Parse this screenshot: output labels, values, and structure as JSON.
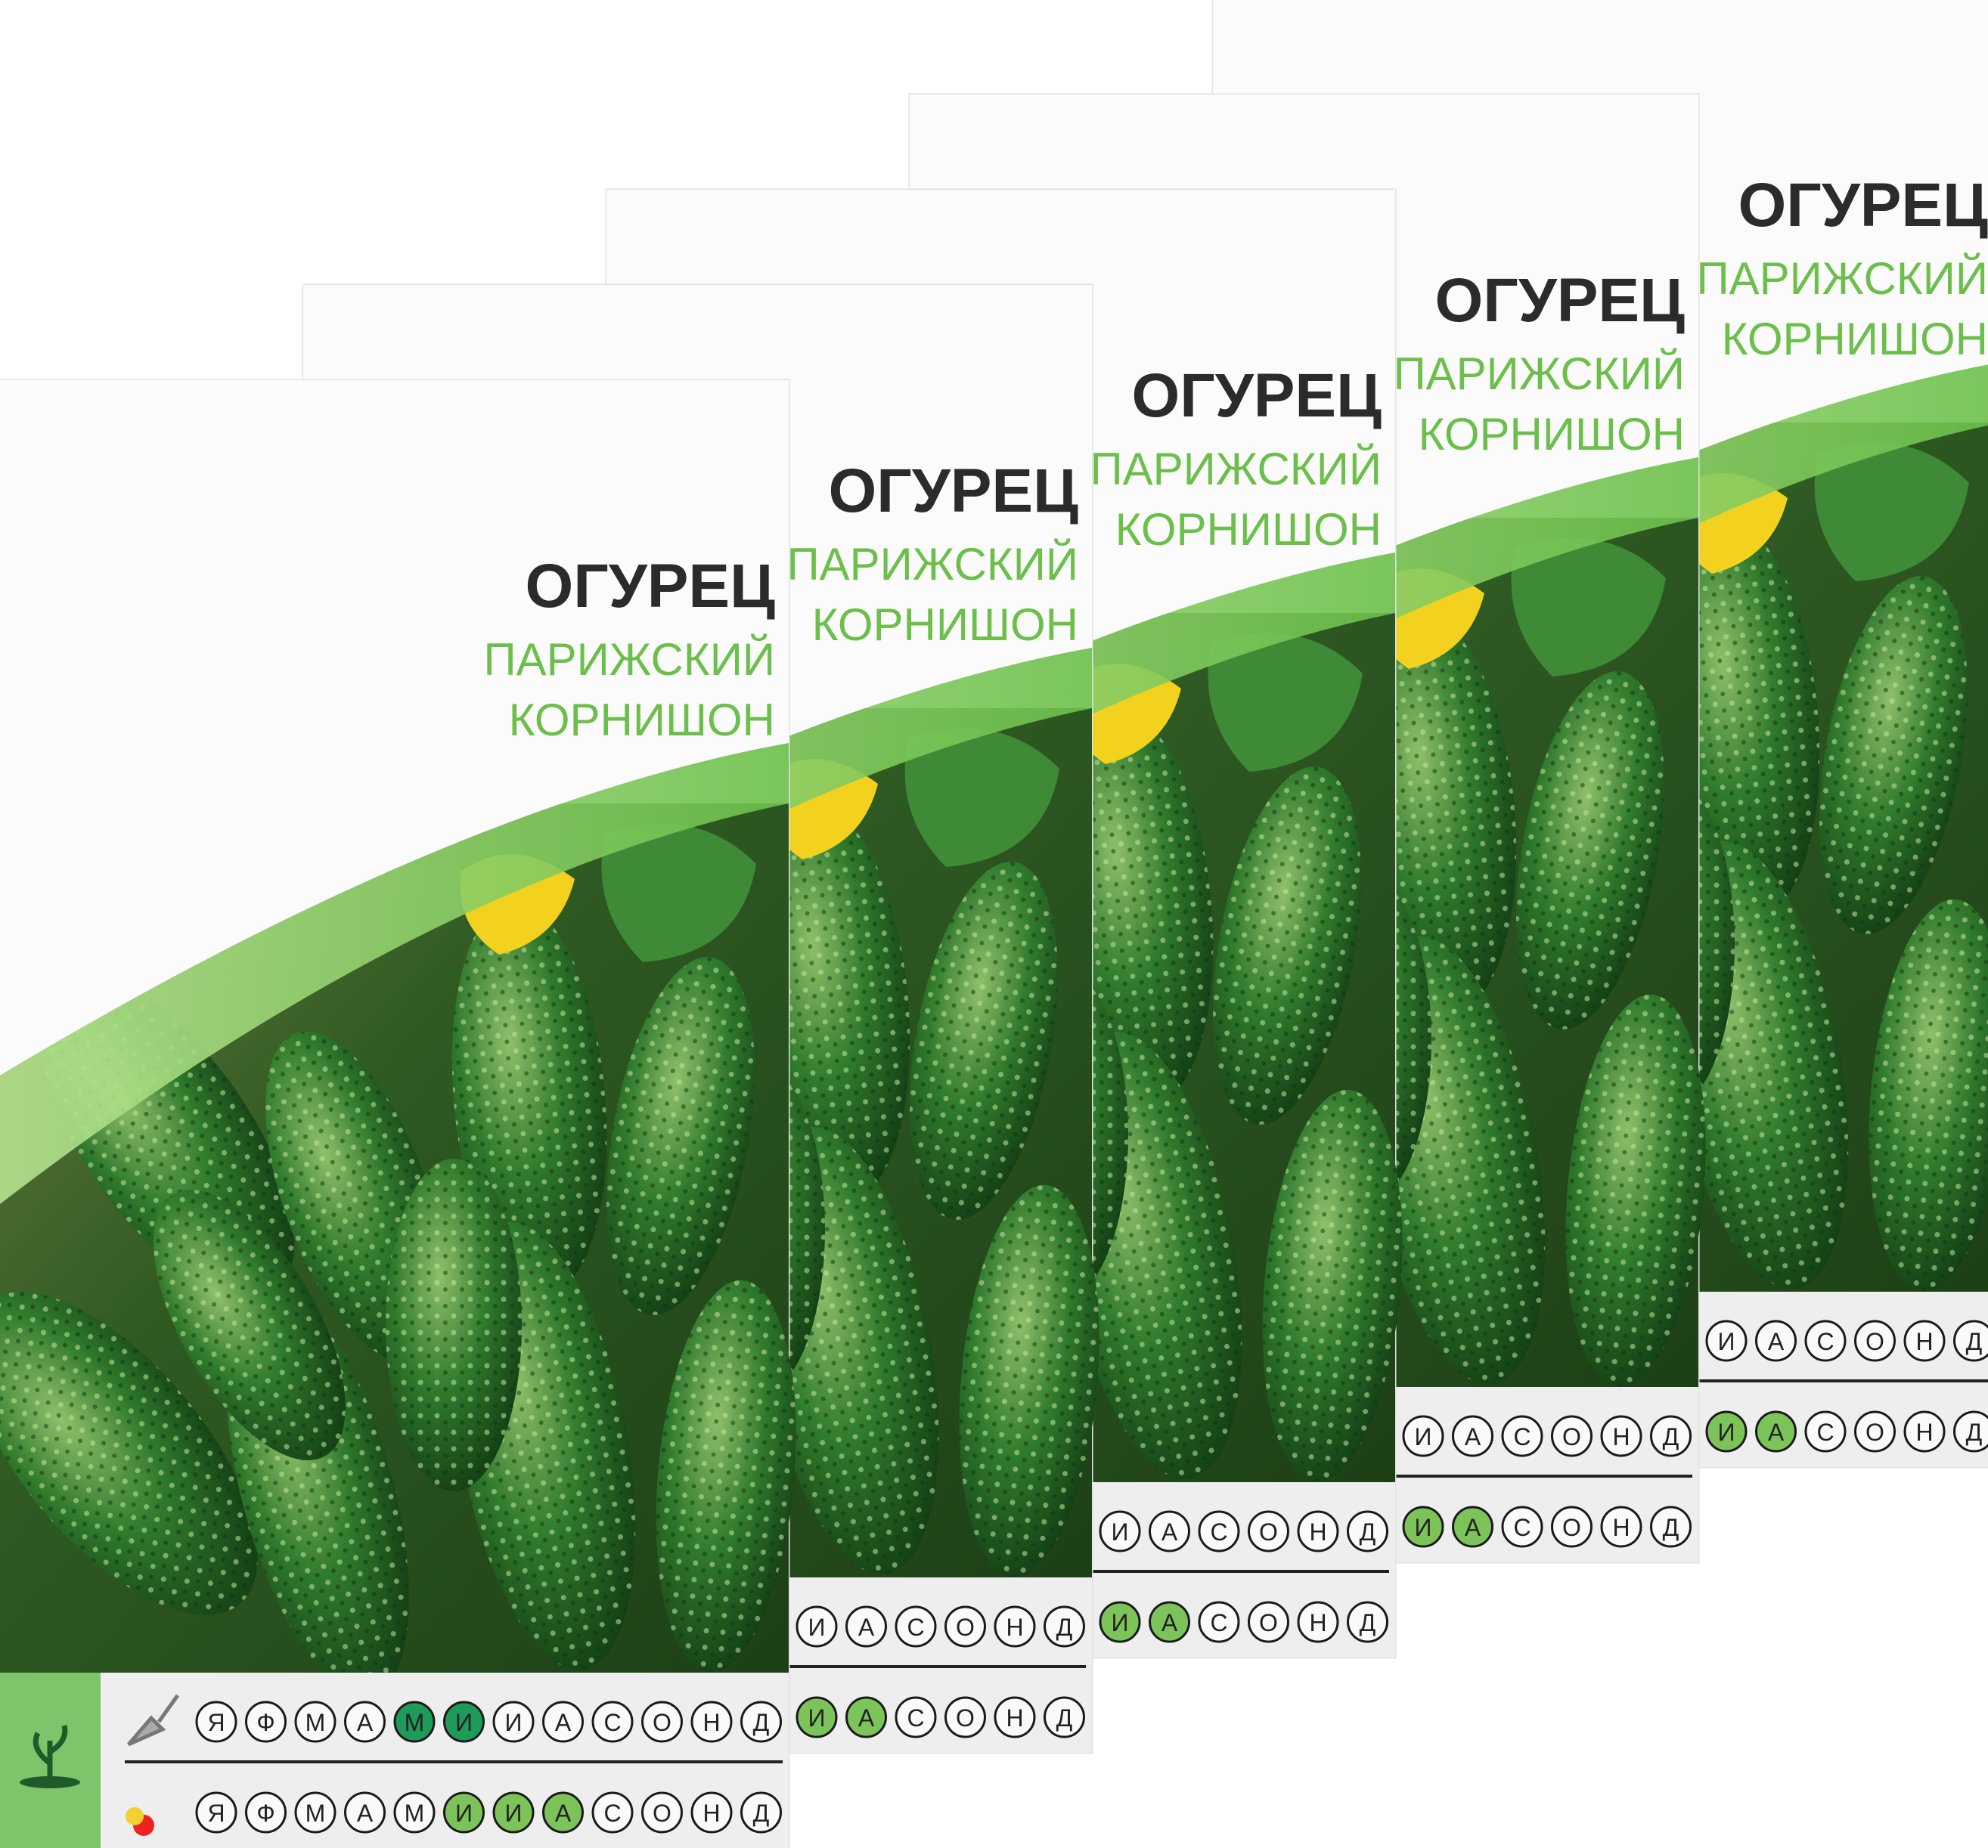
{
  "packet": {
    "crop": "ОГУРЕЦ",
    "variety_line1": "ПАРИЖСКИЙ",
    "variety_line2": "КОРНИШОН",
    "months": [
      "Я",
      "Ф",
      "М",
      "А",
      "М",
      "И",
      "И",
      "А",
      "С",
      "О",
      "Н",
      "Д"
    ],
    "sowing_highlight": [
      4,
      5
    ],
    "harvest_highlight": [
      5,
      6,
      7
    ],
    "icons": {
      "side": "sprout-icon",
      "sowing": "trowel-icon",
      "harvest": "vegetables-icon"
    }
  },
  "packet_count": 5,
  "colors": {
    "title": "#2b2b2b",
    "variety": "#6cbf4b",
    "swoosh": "#8fd06a",
    "sowing": "#1e9b5a",
    "harvest": "#7cc45a",
    "side_strip": "#7dc46a"
  }
}
